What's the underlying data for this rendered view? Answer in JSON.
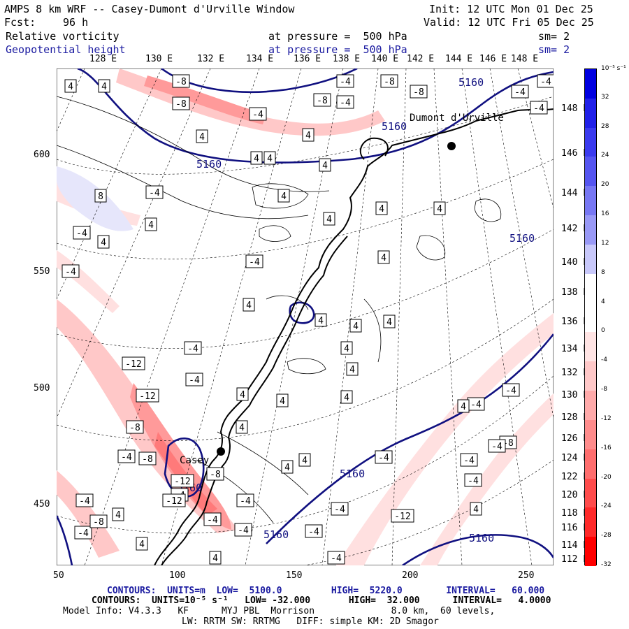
{
  "header": {
    "title": "AMPS 8 km WRF -- Casey-Dumont d'Urville Window",
    "init": "Init: 12 UTC Mon 01 Dec 25",
    "fcst_label": "Fcst:",
    "fcst_value": "96 h",
    "valid": "Valid: 12 UTC Fri 05 Dec 25",
    "field1": "Relative vorticity",
    "field1_level": "at pressure =  500 hPa",
    "field1_sm": "sm= 2",
    "field2": "Geopotential height",
    "field2_level": "at pressure =  500 hPa",
    "field2_sm": "sm= 2"
  },
  "map": {
    "lon_top_labels": [
      "128 E",
      "130 E",
      "132 E",
      "134 E",
      "136 E",
      "138 E",
      "140 E",
      "142 E",
      "144 E",
      "146 E",
      "148 E"
    ],
    "lat_right_labels": [
      "148 E",
      "146 E",
      "144 E",
      "142 E",
      "140 E",
      "138 E",
      "136 E",
      "134 E",
      "132 E",
      "130 E",
      "128 E",
      "126 E",
      "124 E",
      "122 E",
      "120 E",
      "118 E",
      "116 E",
      "114 E",
      "112 E"
    ],
    "y_axis_labels": [
      "600",
      "550",
      "500",
      "450"
    ],
    "x_axis_labels": [
      "50",
      "100",
      "150",
      "200",
      "250"
    ],
    "stations": [
      {
        "name": "Dumont d'Urville"
      },
      {
        "name": "Casey"
      }
    ],
    "height_contours": [
      "5160",
      "5160",
      "5160",
      "5160",
      "5160",
      "5160",
      "5160",
      "5160"
    ],
    "vorticity_labels": [
      "4",
      "4",
      "-8",
      "-8",
      "4",
      "-8",
      "-4",
      "-8",
      "-4",
      "-4",
      "4",
      "4",
      "4",
      "4",
      "4",
      "-8",
      "8",
      "-4",
      "4",
      "-4",
      "4",
      "-4",
      "-4",
      "4",
      "4",
      "-4",
      "4",
      "4",
      "4",
      "4",
      "4",
      "4",
      "4",
      "-4",
      "-12",
      "-4",
      "4",
      "-12",
      "4",
      "4",
      "-8",
      "4",
      "-4",
      "-8",
      "-4",
      "-12",
      "-8",
      "-4",
      "-8",
      "-4",
      "-4",
      "4",
      "-12",
      "-4",
      "-4",
      "4",
      "-4",
      "-4",
      "4",
      "-8",
      "-4",
      "-4",
      "4",
      "-4",
      "-12",
      "-4",
      "4",
      "4",
      "-4",
      "4",
      "4",
      "-4",
      "-4",
      "-4",
      "-4"
    ]
  },
  "colorbar": {
    "unit": "10⁻⁵ s⁻¹",
    "labels": [
      "32",
      "28",
      "24",
      "20",
      "16",
      "12",
      "8",
      "4",
      "0",
      "-4",
      "-8",
      "-12",
      "-16",
      "-20",
      "-24",
      "-28",
      "-32"
    ],
    "colors": [
      "#0000e0",
      "#2020e8",
      "#3a3aee",
      "#5555f0",
      "#7777f3",
      "#9999f6",
      "#c8c8fa",
      "#ffffff",
      "#ffffff",
      "#ffe4e4",
      "#ffc8c8",
      "#ffaaaa",
      "#ff8c8c",
      "#ff6e6e",
      "#ff4c4c",
      "#ff2a2a",
      "#ff0000"
    ]
  },
  "footer": {
    "line1": "CONTOURS:  UNITS=m  LOW=  5100.0         HIGH=  5220.0        INTERVAL=   60.000",
    "line2": "CONTOURS:  UNITS=10⁻⁵ s⁻¹   LOW= -32.000       HIGH=  32.000      INTERVAL=   4.0000",
    "line3": "Model Info: V4.3.3   KF      MYJ PBL  Morrison              8.0 km,  60 levels,",
    "line4": "LW: RRTM SW: RRTMG   DIFF: simple KM: 2D Smagor"
  }
}
